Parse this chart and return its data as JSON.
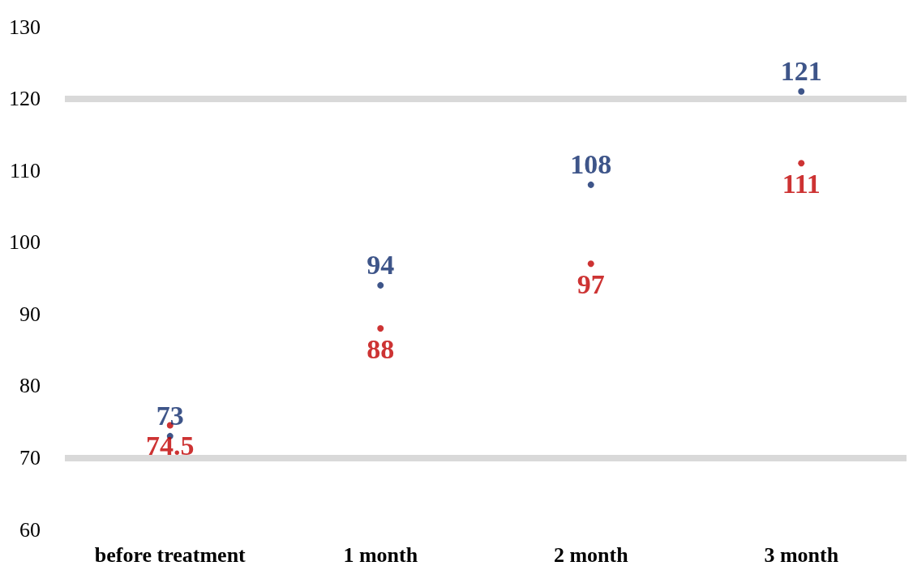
{
  "chart_data": {
    "type": "scatter",
    "categories": [
      "before treatment",
      "1 month",
      "2 month",
      "3 month"
    ],
    "series": [
      {
        "color": "#0e2a6b",
        "values": [
          73,
          94,
          108,
          121
        ]
      },
      {
        "color": "#c00000",
        "values": [
          74.5,
          88,
          97,
          111
        ]
      }
    ],
    "ylim": [
      60,
      130
    ],
    "yticks": [
      60,
      70,
      80,
      90,
      100,
      110,
      120,
      130
    ],
    "grid": false,
    "marker": "circle",
    "data_labels": true,
    "ref_lines": [
      {
        "axis": "y",
        "value": 120,
        "color": "#d9d9d9"
      },
      {
        "axis": "y",
        "value": 70,
        "color": "#d9d9d9"
      }
    ]
  }
}
